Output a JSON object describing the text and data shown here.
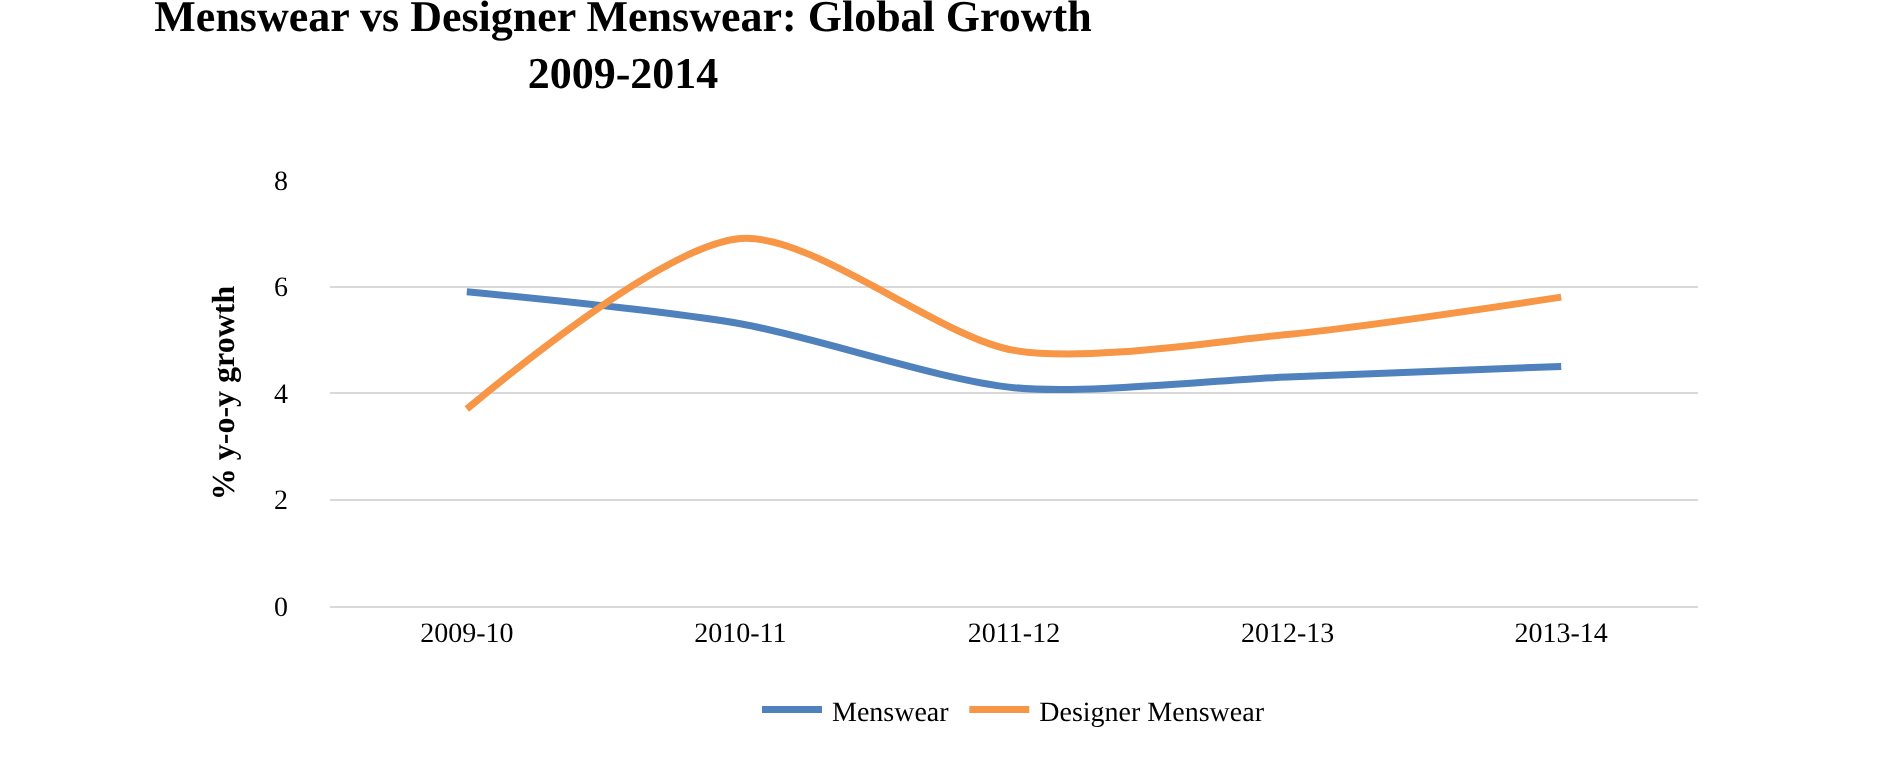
{
  "chart_data": {
    "type": "line",
    "title": "Menswear vs Designer Menswear: Global Growth\n2009-2014",
    "ylabel": "% y-o-y growth",
    "categories": [
      "2009-10",
      "2010-11",
      "2011-12",
      "2012-13",
      "2013-14"
    ],
    "series": [
      {
        "name": "Menswear",
        "color": "#4f81bd",
        "values": [
          5.9,
          5.3,
          4.1,
          4.3,
          4.5
        ]
      },
      {
        "name": "Designer Menswear",
        "color": "#f79646",
        "values": [
          3.7,
          6.9,
          4.8,
          5.1,
          5.8
        ]
      }
    ],
    "ylim": [
      0,
      8
    ],
    "yticks": [
      0,
      2,
      4,
      6,
      8
    ],
    "grid": "y",
    "legend": "bottom",
    "marker": "none",
    "line_style": "solid"
  }
}
